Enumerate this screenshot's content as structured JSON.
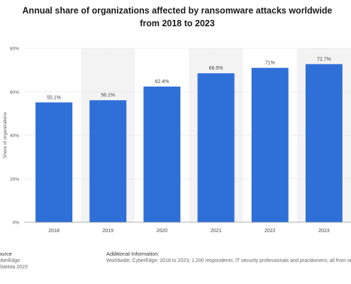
{
  "title": "Annual share of organizations affected by ransomware attacks worldwide from 2018 to 2023",
  "colors": {
    "bar": "#2f6fd8",
    "band": "#f3f3f3",
    "grid": "#d0d0d0"
  },
  "chart_data": {
    "type": "bar",
    "title": "Annual share of organizations affected by ransomware attacks worldwide from 2018 to 2023",
    "xlabel": "",
    "ylabel": "Share of organizations",
    "categories": [
      "2018",
      "2019",
      "2020",
      "2021",
      "2022",
      "2023"
    ],
    "values": [
      55.1,
      56.1,
      62.4,
      68.5,
      71,
      72.7
    ],
    "value_labels": [
      "55.1%",
      "56.1%",
      "62.4%",
      "68.5%",
      "71%",
      "72.7%"
    ],
    "ylim": [
      0,
      80
    ],
    "yticks": [
      0,
      20,
      40,
      60,
      80
    ],
    "ytick_labels": [
      "0%",
      "20%",
      "40%",
      "60%",
      "80%"
    ],
    "grid": true
  },
  "footer": {
    "source_heading": "ource",
    "source_lines": [
      "yberEdge",
      "Statista 2023"
    ],
    "info_heading": "Additional Information:",
    "info_text": "Worldwide; CyberEdge; 2018 to 2023; 1,200 respondents; IT security professionals and practitioners; all from orga"
  }
}
